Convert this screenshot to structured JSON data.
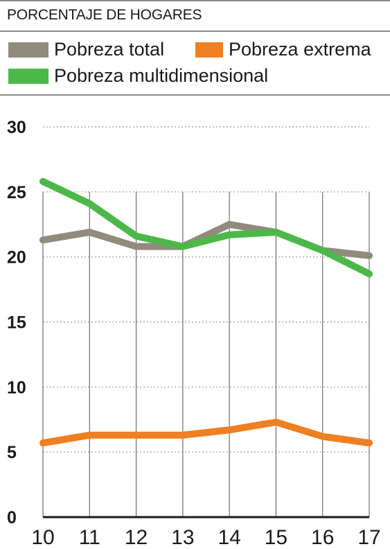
{
  "chart_data": {
    "type": "line",
    "title": "PORCENTAJE DE HOGARES",
    "x": [
      "10",
      "11",
      "12",
      "13",
      "14",
      "15",
      "16",
      "17"
    ],
    "ylim": [
      0,
      30
    ],
    "yticks": [
      0,
      5,
      10,
      15,
      20,
      25,
      30
    ],
    "grid": true,
    "legend_position": "top",
    "series": [
      {
        "name": "Pobreza total",
        "color": "#918b7e",
        "values": [
          21.3,
          21.9,
          20.8,
          20.8,
          22.5,
          21.9,
          20.5,
          20.1
        ]
      },
      {
        "name": "Pobreza extrema",
        "color": "#ee7f22",
        "values": [
          5.7,
          6.3,
          6.3,
          6.3,
          6.7,
          7.3,
          6.2,
          5.7
        ]
      },
      {
        "name": "Pobreza multidimensional",
        "color": "#4db84a",
        "values": [
          25.8,
          24.1,
          21.6,
          20.8,
          21.7,
          21.9,
          20.5,
          18.7
        ]
      }
    ]
  }
}
